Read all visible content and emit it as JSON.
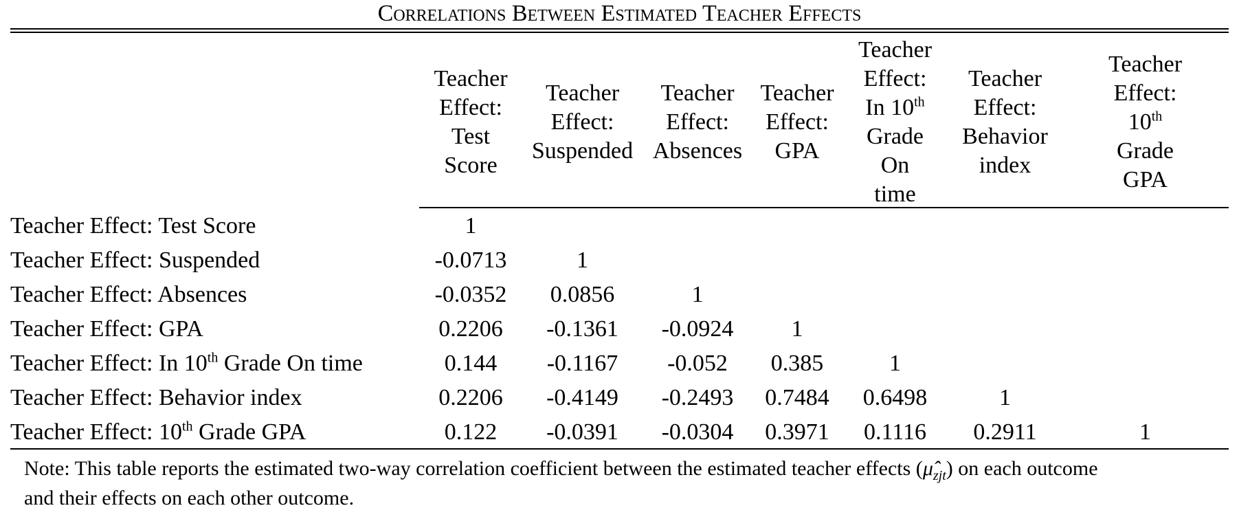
{
  "title": "Correlations Between Estimated Teacher Effects",
  "columns": [
    {
      "l1": "Teacher",
      "l2": "Effect:",
      "l3": "Test",
      "l4": "Score"
    },
    {
      "l1": "Teacher",
      "l2": "Effect:",
      "l3": "Suspended"
    },
    {
      "l1": "Teacher",
      "l2": "Effect:",
      "l3": "Absences"
    },
    {
      "l1": "Teacher",
      "l2": "Effect:",
      "l3": "GPA"
    },
    {
      "l1": "Teacher",
      "l2": "Effect:",
      "l3a": "In 10",
      "l3sup": "th",
      "l4": "Grade",
      "l5": "On",
      "l6": "time"
    },
    {
      "l1": "Teacher",
      "l2": "Effect:",
      "l3": "Behavior",
      "l4": "index"
    },
    {
      "l1": "Teacher",
      "l2": "Effect:",
      "l3a": "10",
      "l3sup": "th",
      "l4": "Grade",
      "l5": "GPA"
    }
  ],
  "rows": [
    {
      "label": "Teacher Effect: Test Score",
      "values": [
        "1"
      ]
    },
    {
      "label": "Teacher Effect: Suspended",
      "values": [
        "-0.0713",
        "1"
      ]
    },
    {
      "label": "Teacher Effect: Absences",
      "values": [
        "-0.0352",
        "0.0856",
        "1"
      ]
    },
    {
      "label": "Teacher Effect: GPA",
      "values": [
        "0.2206",
        "-0.1361",
        "-0.0924",
        "1"
      ]
    },
    {
      "label_pre": "Teacher Effect: In 10",
      "label_sup": "th",
      "label_post": " Grade On time",
      "values": [
        "0.144",
        "-0.1167",
        "-0.052",
        "0.385",
        "1"
      ]
    },
    {
      "label": "Teacher Effect: Behavior index",
      "values": [
        "0.2206",
        "-0.4149",
        "-0.2493",
        "0.7484",
        "0.6498",
        "1"
      ]
    },
    {
      "label_pre": "Teacher Effect: 10",
      "label_sup": "th",
      "label_post": " Grade GPA",
      "values": [
        "0.122",
        "-0.0391",
        "-0.0304",
        "0.3971",
        "0.1116",
        "0.2911",
        "1"
      ]
    }
  ],
  "note": {
    "line1_pre": "Note: This table reports the estimated two-way correlation coefficient between the estimated teacher effects (",
    "symbol": "μ̂",
    "symbol_sub": "zjt",
    "line1_post": ") on each outcome",
    "line2": "and their effects on each other outcome."
  }
}
